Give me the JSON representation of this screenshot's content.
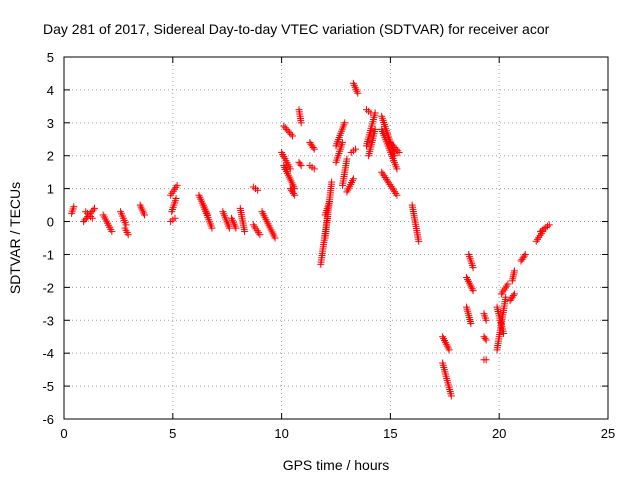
{
  "chart_data": {
    "type": "scatter",
    "title": "Day 281 of 2017, Sidereal Day-to-day VTEC variation (SDTVAR) for receiver acor",
    "xlabel": "GPS time / hours",
    "ylabel": "SDTVAR / TECUs",
    "xlim": [
      0,
      25
    ],
    "ylim": [
      -6,
      5
    ],
    "xticks": [
      "0",
      "5",
      "10",
      "15",
      "20",
      "25"
    ],
    "yticks": [
      "5",
      "4",
      "3",
      "2",
      "1",
      "0",
      "-1",
      "-2",
      "-3",
      "-4",
      "-5",
      "-6"
    ],
    "grid": true,
    "marker": "+",
    "color": "#ff0000",
    "segments": [
      [
        0.35,
        0.45,
        0.25,
        0.45
      ],
      [
        0.9,
        1.4,
        0.0,
        0.4
      ],
      [
        1.0,
        1.3,
        0.3,
        0.1
      ],
      [
        1.8,
        2.2,
        0.2,
        -0.3
      ],
      [
        2.6,
        2.85,
        0.3,
        -0.1
      ],
      [
        2.8,
        2.95,
        -0.2,
        -0.4
      ],
      [
        3.5,
        3.7,
        0.5,
        0.2
      ],
      [
        4.9,
        5.2,
        0.8,
        1.1
      ],
      [
        4.95,
        5.15,
        0.3,
        0.7
      ],
      [
        4.9,
        5.1,
        0.0,
        0.1
      ],
      [
        6.2,
        6.6,
        0.8,
        0.2
      ],
      [
        6.4,
        6.8,
        0.5,
        -0.2
      ],
      [
        7.3,
        7.6,
        0.3,
        -0.2
      ],
      [
        7.7,
        7.9,
        0.1,
        -0.2
      ],
      [
        8.1,
        8.3,
        0.4,
        -0.3
      ],
      [
        8.7,
        8.9,
        1.05,
        0.95
      ],
      [
        8.7,
        9.0,
        -0.1,
        -0.4
      ],
      [
        9.1,
        9.7,
        0.3,
        -0.5
      ],
      [
        10.1,
        10.5,
        2.9,
        2.6
      ],
      [
        10.0,
        10.4,
        2.1,
        1.6
      ],
      [
        10.1,
        10.6,
        1.7,
        1.0
      ],
      [
        10.4,
        10.6,
        1.0,
        0.8
      ],
      [
        10.8,
        10.9,
        3.4,
        3.0
      ],
      [
        10.8,
        10.9,
        1.8,
        1.7
      ],
      [
        11.3,
        11.5,
        2.4,
        2.2
      ],
      [
        11.3,
        11.5,
        1.7,
        1.6
      ],
      [
        11.8,
        12.1,
        -1.3,
        0.1
      ],
      [
        12.0,
        12.3,
        -0.5,
        1.2
      ],
      [
        12.0,
        12.2,
        0.2,
        0.6
      ],
      [
        12.5,
        12.9,
        2.3,
        3.0
      ],
      [
        12.5,
        12.8,
        1.8,
        2.4
      ],
      [
        12.8,
        13.0,
        1.1,
        1.9
      ],
      [
        13.0,
        13.3,
        0.9,
        1.3
      ],
      [
        13.2,
        13.4,
        2.1,
        2.2
      ],
      [
        13.3,
        13.5,
        4.2,
        3.9
      ],
      [
        13.9,
        14.3,
        2.3,
        3.3
      ],
      [
        13.9,
        14.1,
        3.4,
        3.3
      ],
      [
        14.0,
        14.3,
        2.0,
        2.8
      ],
      [
        14.6,
        15.2,
        3.2,
        2.0
      ],
      [
        14.6,
        15.3,
        2.8,
        1.6
      ],
      [
        14.6,
        15.3,
        1.5,
        0.8
      ],
      [
        15.0,
        15.4,
        2.4,
        2.1
      ],
      [
        16.0,
        16.3,
        0.5,
        -0.6
      ],
      [
        17.4,
        17.7,
        -3.5,
        -3.9
      ],
      [
        17.4,
        17.8,
        -4.3,
        -5.3
      ],
      [
        18.5,
        18.7,
        -2.6,
        -3.1
      ],
      [
        18.5,
        18.8,
        -1.7,
        -2.1
      ],
      [
        18.6,
        18.8,
        -1.0,
        -1.4
      ],
      [
        19.3,
        19.4,
        -2.8,
        -3.0
      ],
      [
        19.3,
        19.4,
        -3.5,
        -3.6
      ],
      [
        19.3,
        19.4,
        -4.2,
        -4.2
      ],
      [
        19.9,
        20.3,
        -3.9,
        -2.3
      ],
      [
        19.9,
        20.2,
        -2.6,
        -3.4
      ],
      [
        20.1,
        20.4,
        -2.2,
        -1.9
      ],
      [
        20.5,
        20.7,
        -2.4,
        -2.2
      ],
      [
        20.6,
        20.7,
        -1.8,
        -1.5
      ],
      [
        21.0,
        21.2,
        -1.2,
        -1.0
      ],
      [
        21.7,
        22.0,
        -0.6,
        -0.3
      ],
      [
        21.9,
        22.3,
        -0.3,
        -0.1
      ]
    ]
  }
}
